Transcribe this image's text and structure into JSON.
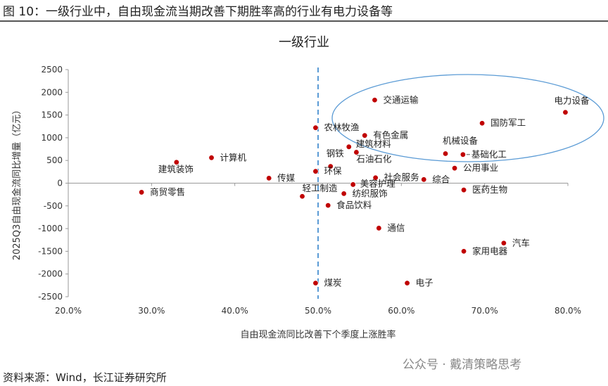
{
  "figure_title": "图 10：一级行业中，自由现金流当期改善下期胜率高的行业有电力设备等",
  "source": "资料来源：Wind，长江证券研究所",
  "watermark": "公众号 · 戴清策略思考",
  "chart_data": {
    "type": "scatter",
    "title": "一级行业",
    "xlabel": "自由现金流同比改善下个季度上涨胜率",
    "ylabel": "2025Q3自由现金流同比增量（亿元）",
    "xlim": [
      20,
      80
    ],
    "ylim": [
      -2500,
      2500
    ],
    "x_ticks": [
      "20.0%",
      "30.0%",
      "40.0%",
      "50.0%",
      "60.0%",
      "70.0%",
      "80.0%"
    ],
    "y_ticks": [
      "2500",
      "2000",
      "1500",
      "1000",
      "500",
      "0",
      "-500",
      "-1000",
      "-1500",
      "-2000",
      "-2500"
    ],
    "reference_line_x": 50,
    "point_color": "#c00000",
    "reference_line_color": "#5b9bd5",
    "highlight_ellipse_color": "#5b9bd5",
    "grid": false,
    "points": [
      {
        "name": "交通运输",
        "x": 56.8,
        "y": 1830
      },
      {
        "name": "电力设备",
        "x": 79.7,
        "y": 1560
      },
      {
        "name": "国防军工",
        "x": 69.7,
        "y": 1320
      },
      {
        "name": "农林牧渔",
        "x": 49.7,
        "y": 1220
      },
      {
        "name": "有色金属",
        "x": 55.6,
        "y": 1050
      },
      {
        "name": "建筑材料",
        "x": 53.7,
        "y": 800
      },
      {
        "name": "石油石化",
        "x": 54.6,
        "y": 680
      },
      {
        "name": "机械设备",
        "x": 65.3,
        "y": 650
      },
      {
        "name": "基础化工",
        "x": 67.4,
        "y": 630
      },
      {
        "name": "计算机",
        "x": 37.2,
        "y": 560
      },
      {
        "name": "建筑装饰",
        "x": 33.0,
        "y": 460
      },
      {
        "name": "钢铁",
        "x": 51.5,
        "y": 370
      },
      {
        "name": "公用事业",
        "x": 66.4,
        "y": 330
      },
      {
        "name": "环保",
        "x": 49.7,
        "y": 260
      },
      {
        "name": "社会服务",
        "x": 56.9,
        "y": 120
      },
      {
        "name": "传媒",
        "x": 44.1,
        "y": 110
      },
      {
        "name": "综合",
        "x": 62.7,
        "y": 80
      },
      {
        "name": "美容护理",
        "x": 54.2,
        "y": -30
      },
      {
        "name": "轻工制造",
        "x": 48.1,
        "y": -290
      },
      {
        "name": "纺织服饰",
        "x": 53.1,
        "y": -230
      },
      {
        "name": "医药生物",
        "x": 67.5,
        "y": -150
      },
      {
        "name": "商贸零售",
        "x": 28.8,
        "y": -200
      },
      {
        "name": "食品饮料",
        "x": 51.2,
        "y": -490
      },
      {
        "name": "通信",
        "x": 57.3,
        "y": -990
      },
      {
        "name": "汽车",
        "x": 72.3,
        "y": -1320
      },
      {
        "name": "家用电器",
        "x": 67.5,
        "y": -1500
      },
      {
        "name": "煤炭",
        "x": 49.7,
        "y": -2200
      },
      {
        "name": "电子",
        "x": 60.7,
        "y": -2200
      }
    ]
  }
}
